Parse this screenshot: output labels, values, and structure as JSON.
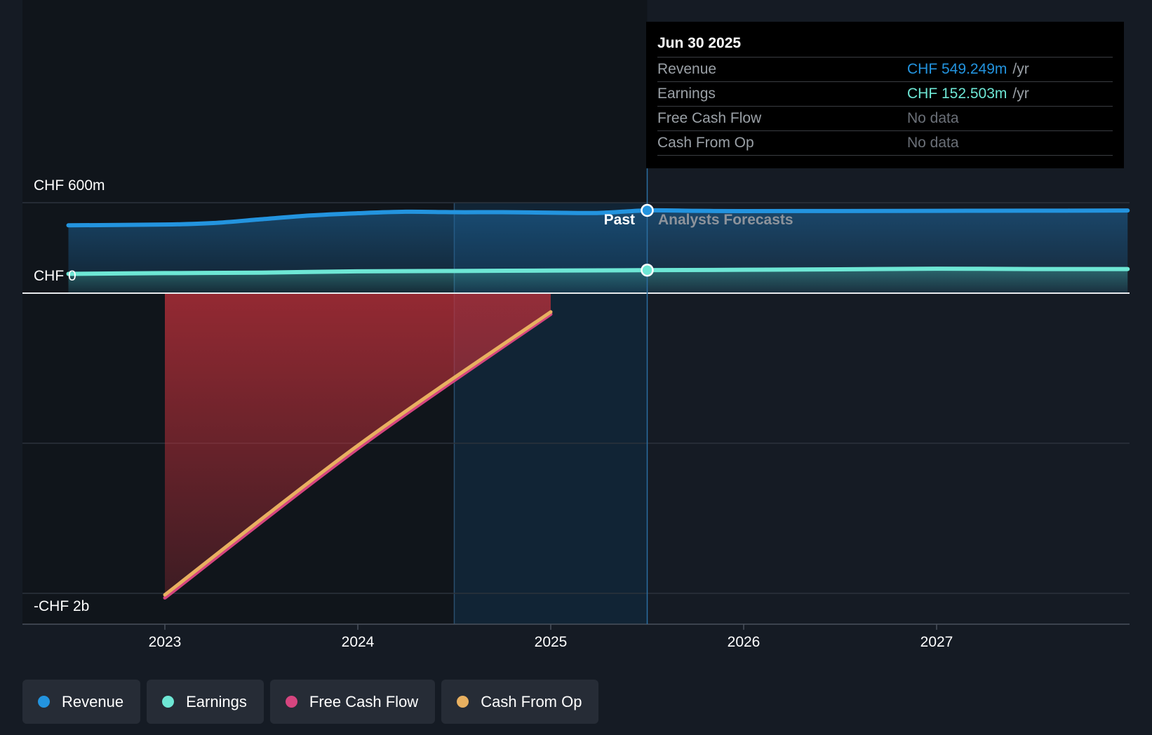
{
  "tooltip": {
    "date": "Jun 30 2025",
    "rows": [
      {
        "label": "Revenue",
        "value": "CHF 549.249m",
        "unit": "/yr",
        "color": "#2394df"
      },
      {
        "label": "Earnings",
        "value": "CHF 152.503m",
        "unit": "/yr",
        "color": "#6ee7d5"
      },
      {
        "label": "Free Cash Flow",
        "value": "No data",
        "unit": "",
        "color": "#6b7078"
      },
      {
        "label": "Cash From Op",
        "value": "No data",
        "unit": "",
        "color": "#6b7078"
      }
    ]
  },
  "legend": [
    {
      "label": "Revenue",
      "color": "#2394df"
    },
    {
      "label": "Earnings",
      "color": "#6ee7d5"
    },
    {
      "label": "Free Cash Flow",
      "color": "#d6457f"
    },
    {
      "label": "Cash From Op",
      "color": "#e8b060"
    }
  ],
  "past_label": "Past",
  "forecast_label": "Analysts Forecasts",
  "chart_data": {
    "type": "line",
    "x_ticks": [
      "2023",
      "2024",
      "2025",
      "2026",
      "2027"
    ],
    "y_tick_labels": [
      {
        "label": "CHF 600m",
        "value": 600
      },
      {
        "label": "CHF 0",
        "value": 0
      },
      {
        "label": "-CHF 2b",
        "value": -2000
      }
    ],
    "xlim": [
      2022.27,
      2027.99
    ],
    "ylim": [
      -2200,
      600
    ],
    "y_gridlines": [
      600,
      0,
      -1000,
      -2000
    ],
    "past_boundary": 2025.5,
    "highlight_start": 2024.5,
    "series": [
      {
        "name": "Revenue",
        "color": "#2394df",
        "x": [
          2022.5,
          2023.0,
          2023.25,
          2023.5,
          2023.75,
          2024.0,
          2024.25,
          2024.5,
          2024.75,
          2025.0,
          2025.25,
          2025.5,
          2025.75,
          2026.0,
          2026.5,
          2027.0,
          2027.5,
          2027.99
        ],
        "y": [
          450,
          455,
          465,
          490,
          515,
          530,
          540,
          537,
          537,
          534,
          532,
          549,
          546,
          544,
          545,
          546,
          547,
          548
        ]
      },
      {
        "name": "Earnings",
        "color": "#6ee7d5",
        "x": [
          2022.5,
          2023.0,
          2023.5,
          2024.0,
          2024.5,
          2025.0,
          2025.5,
          2026.0,
          2026.5,
          2027.0,
          2027.5,
          2027.99
        ],
        "y": [
          128,
          133,
          136,
          145,
          147,
          150,
          152.5,
          155,
          158,
          162,
          160,
          160
        ]
      },
      {
        "name": "Free Cash Flow",
        "color": "#d6457f",
        "x": [
          2023.0,
          2024.0,
          2025.0
        ],
        "y": [
          -2030,
          -1035,
          -140
        ]
      },
      {
        "name": "Cash From Op",
        "color": "#e8b060",
        "x": [
          2023.0,
          2024.0,
          2025.0
        ],
        "y": [
          -2010,
          -1015,
          -125
        ]
      }
    ]
  }
}
